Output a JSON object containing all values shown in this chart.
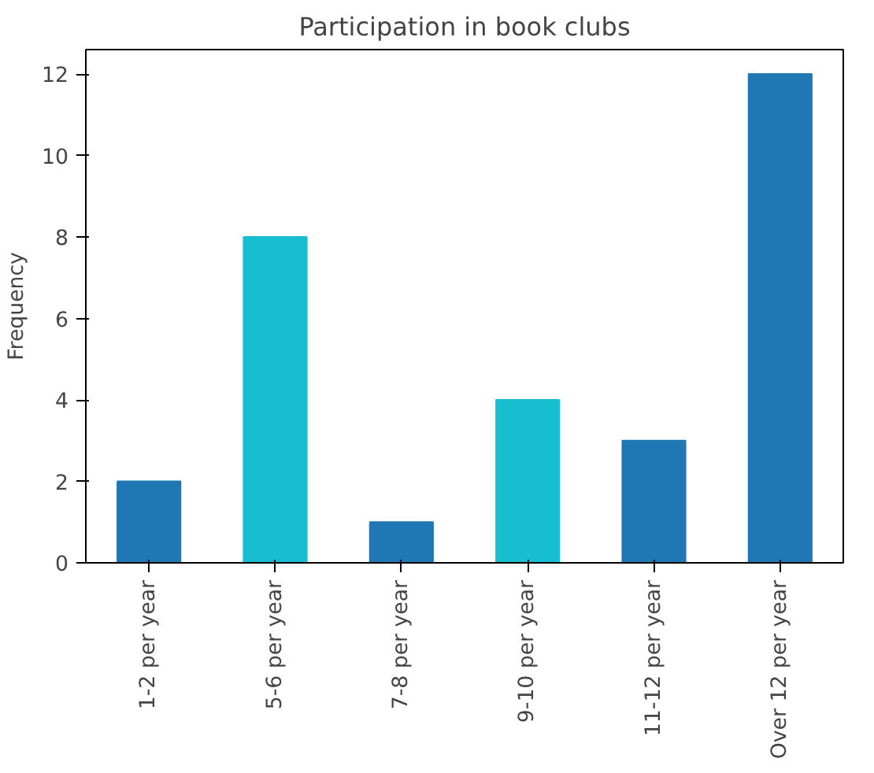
{
  "chart_data": {
    "type": "bar",
    "title": "Participation in book clubs",
    "ylabel": "Frequency",
    "categories": [
      "1-2 per year",
      "5-6 per year",
      "7-8 per year",
      "9-10 per year",
      "11-12 per year",
      "Over 12 per year"
    ],
    "values": [
      2,
      8,
      1,
      4,
      3,
      12
    ],
    "colors": [
      "#1f77b4",
      "#17becf",
      "#1f77b4",
      "#17becf",
      "#1f77b4",
      "#1f77b4"
    ],
    "ylim": [
      0,
      12.6
    ],
    "yticks": [
      0,
      2,
      4,
      6,
      8,
      10,
      12
    ],
    "grid": false
  }
}
